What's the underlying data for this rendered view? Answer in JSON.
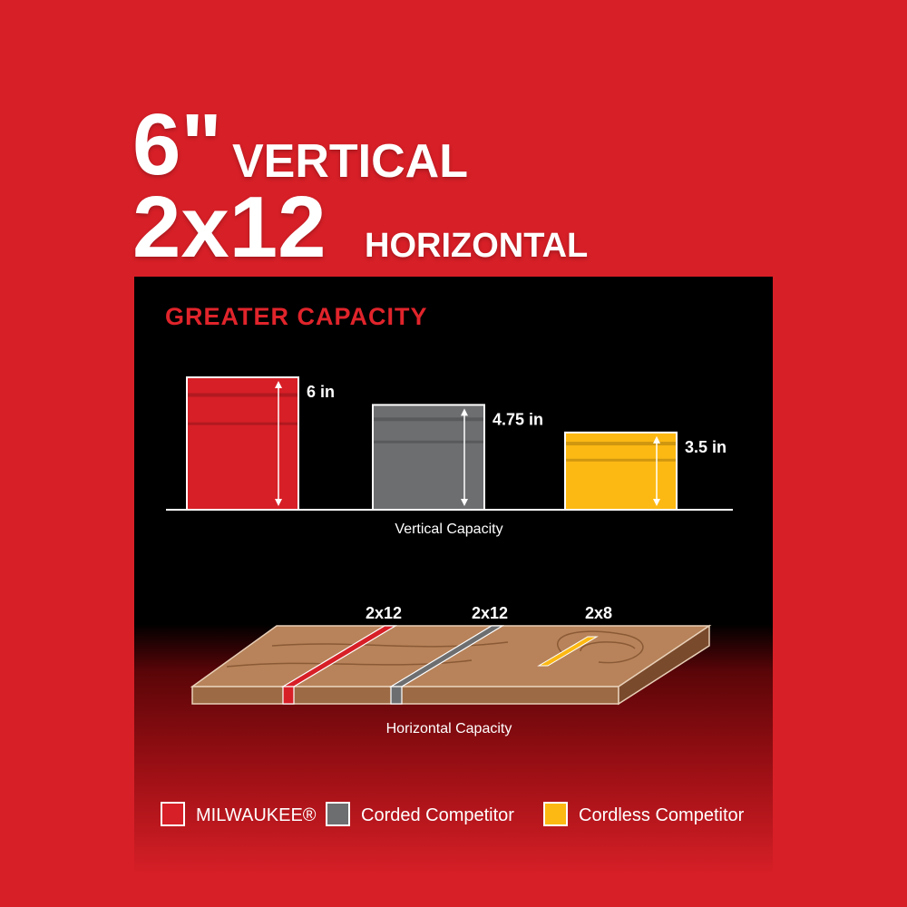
{
  "headline": {
    "line1_big": "6\"",
    "line1_small": "VERTICAL",
    "line2_big": "2x12",
    "line2_small": "HORIZONTAL"
  },
  "panel_title": "GREATER CAPACITY",
  "colors": {
    "background": "#d71f27",
    "milwaukee": "#d71f27",
    "corded": "#6d6e70",
    "cordless": "#fdb913",
    "wood": "#b07a4d"
  },
  "chart_data": {
    "type": "bar",
    "title": "GREATER CAPACITY",
    "xlabel": "Vertical Capacity",
    "categories": [
      "MILWAUKEE®",
      "Corded Competitor",
      "Cordless Competitor"
    ],
    "values": [
      6,
      4.75,
      3.5
    ],
    "unit": "in",
    "data_labels": [
      "6 in",
      "4.75 in",
      "3.5 in"
    ],
    "ylim": [
      0,
      6
    ],
    "horizontal": {
      "xlabel": "Horizontal Capacity",
      "labels": [
        "2x12",
        "2x12",
        "2x8"
      ]
    },
    "legend": {
      "placement": "bottom",
      "entries": [
        "MILWAUKEE®",
        "Corded Competitor",
        "Cordless Competitor"
      ]
    }
  }
}
